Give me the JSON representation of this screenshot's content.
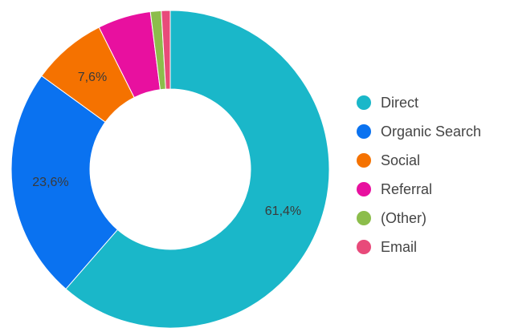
{
  "chart_data": {
    "type": "pie",
    "donut": true,
    "legend_position": "right",
    "slices": [
      {
        "label": "Direct",
        "value": 61.4,
        "value_label": "61,4%",
        "color": "#1ab7c9"
      },
      {
        "label": "Organic Search",
        "value": 23.6,
        "value_label": "23,6%",
        "color": "#0a72f0"
      },
      {
        "label": "Social",
        "value": 7.6,
        "value_label": "7,6%",
        "color": "#f57200"
      },
      {
        "label": "Referral",
        "value": 5.4,
        "value_label": "",
        "color": "#e8109f"
      },
      {
        "label": "(Other)",
        "value": 1.1,
        "value_label": "",
        "color": "#8cbd4b"
      },
      {
        "label": "Email",
        "value": 0.9,
        "value_label": "",
        "color": "#e84a7a"
      }
    ]
  }
}
